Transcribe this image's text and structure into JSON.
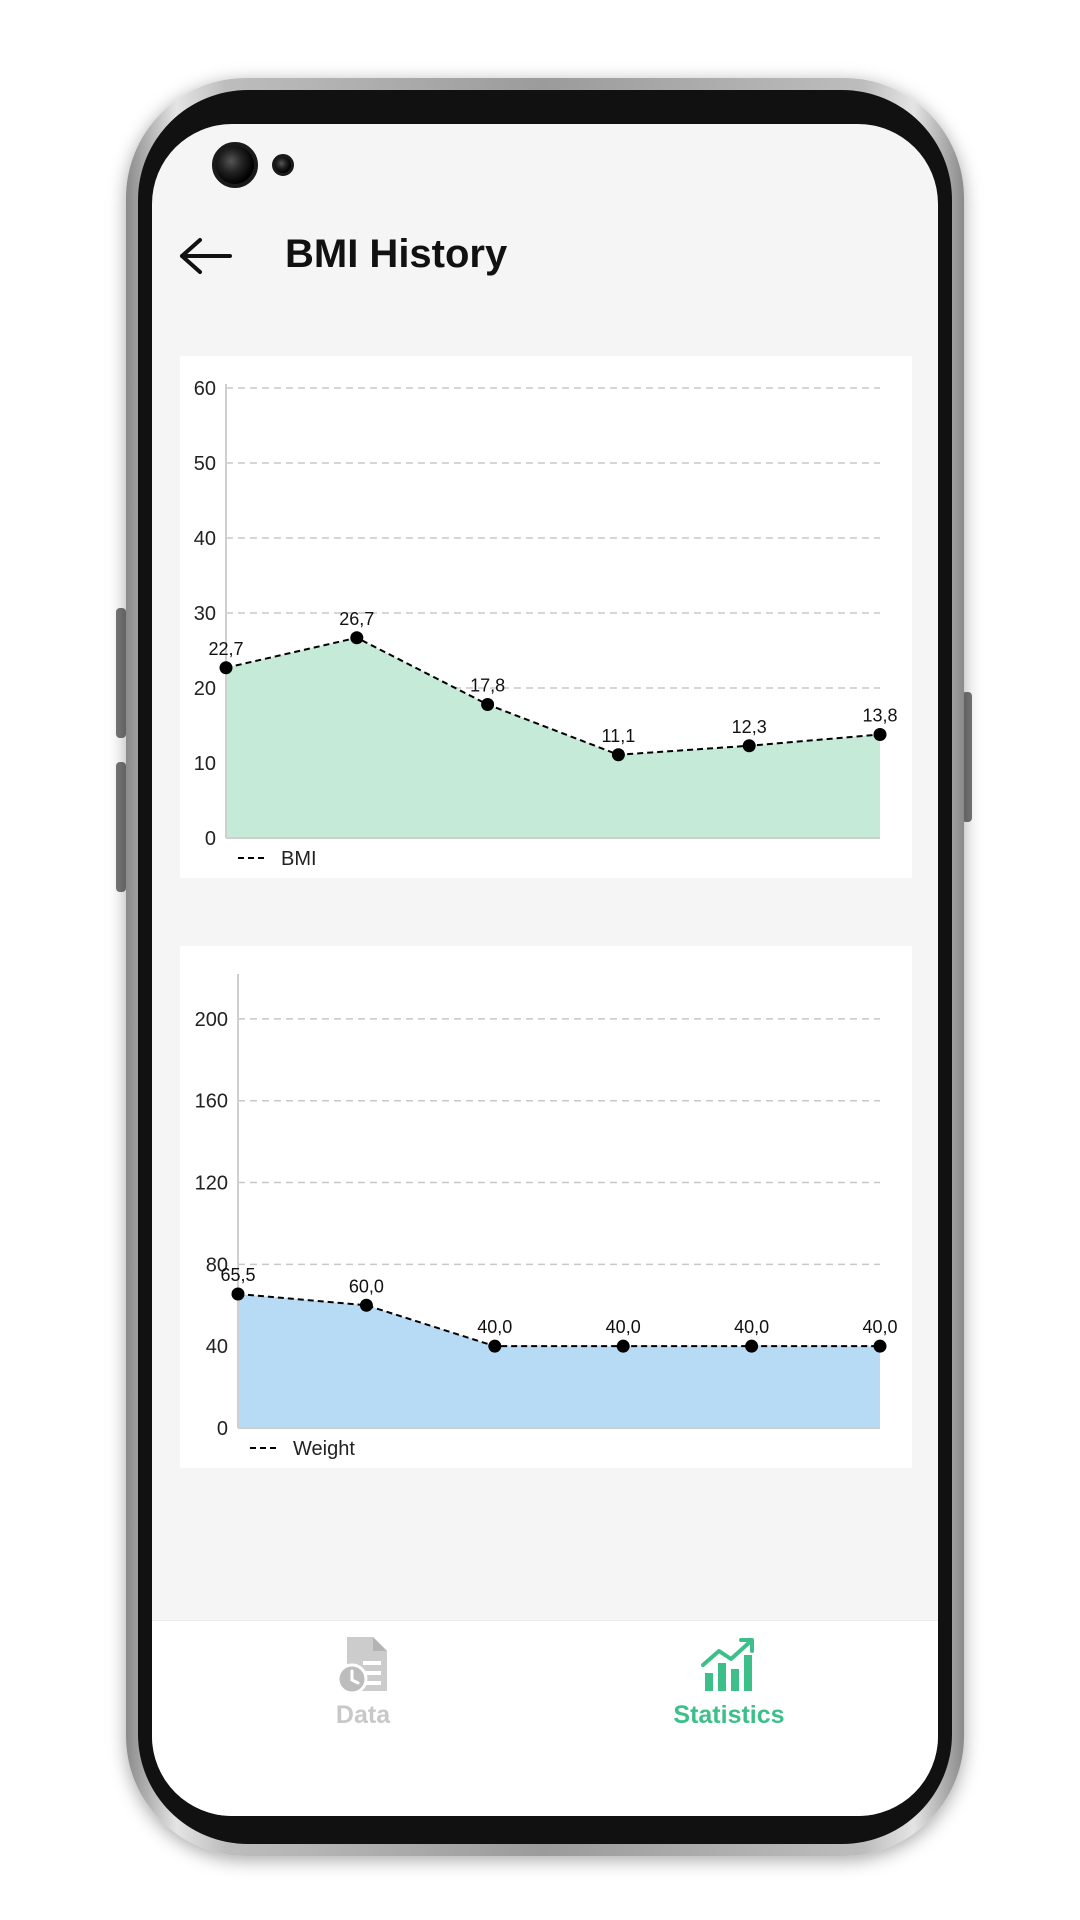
{
  "header": {
    "title": "BMI History"
  },
  "charts": [
    {
      "type": "area",
      "x": [
        1,
        2,
        3,
        4,
        5,
        6
      ],
      "values": [
        22.7,
        26.7,
        17.8,
        11.1,
        12.3,
        13.8
      ],
      "value_labels": [
        "22,7",
        "26,7",
        "17,8",
        "11,1",
        "12,3",
        "13,8"
      ],
      "yticks": [
        0,
        10,
        20,
        30,
        40,
        50,
        60
      ],
      "ytick_labels": [
        "0",
        "10",
        "20",
        "30",
        "40",
        "50",
        "60"
      ],
      "ylim": [
        0,
        60
      ],
      "legend": "BMI",
      "fill_color": "#c5ead8",
      "line_color": "#000000",
      "grid": true
    },
    {
      "type": "area",
      "x": [
        1,
        2,
        3,
        4,
        5,
        6
      ],
      "values": [
        65.5,
        60.0,
        40.0,
        40.0,
        40.0,
        40.0
      ],
      "value_labels": [
        "65,5",
        "60,0",
        "40,0",
        "40,0",
        "40,0",
        "40,0"
      ],
      "yticks": [
        0,
        40,
        80,
        120,
        160,
        200
      ],
      "ytick_labels": [
        "0",
        "40",
        "80",
        "120",
        "160",
        "200"
      ],
      "ylim": [
        0,
        220
      ],
      "legend": "Weight",
      "fill_color": "#b8dbf5",
      "line_color": "#000000",
      "grid": true
    }
  ],
  "chart_data": [
    {
      "type": "area",
      "x": [
        1,
        2,
        3,
        4,
        5,
        6
      ],
      "series": [
        {
          "name": "BMI",
          "values": [
            22.7,
            26.7,
            17.8,
            11.1,
            12.3,
            13.8
          ]
        }
      ],
      "ylim": [
        0,
        60
      ],
      "legend": "bottom-left"
    },
    {
      "type": "area",
      "x": [
        1,
        2,
        3,
        4,
        5,
        6
      ],
      "series": [
        {
          "name": "Weight",
          "values": [
            65.5,
            60.0,
            40.0,
            40.0,
            40.0,
            40.0
          ]
        }
      ],
      "ylim": [
        0,
        220
      ],
      "legend": "bottom-left"
    }
  ],
  "nav": {
    "data_label": "Data",
    "statistics_label": "Statistics",
    "active_color": "#3dbf8a",
    "inactive_color": "#c8c8c8"
  }
}
